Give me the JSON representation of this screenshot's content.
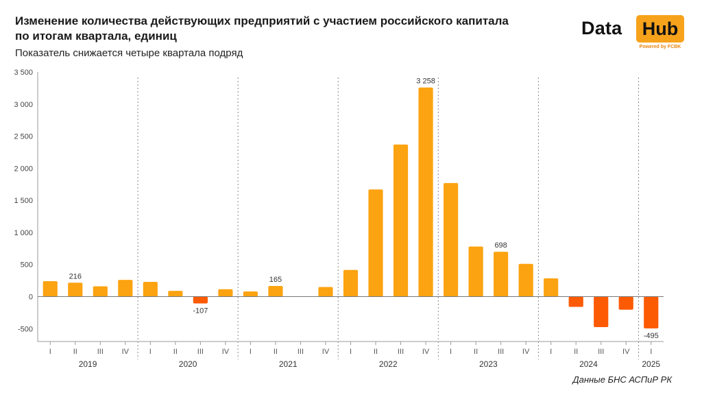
{
  "header": {
    "title": "Изменение количества действующих предприятий с участием российского капитала по итогам квартала, единиц",
    "subtitle": "Показатель снижается четыре квартала подряд"
  },
  "logo": {
    "word1": "Data",
    "word2": "Hub",
    "tagline": "Powered by FCBK"
  },
  "footer": {
    "source": "Данные БНС АСПиР РК"
  },
  "colors": {
    "positive": "#fca311",
    "negative": "#fc5a03",
    "axis": "#999999",
    "separator": "#888888"
  },
  "chart_data": {
    "type": "bar",
    "categories": [
      "I",
      "II",
      "III",
      "IV",
      "I",
      "II",
      "III",
      "IV",
      "I",
      "II",
      "III",
      "IV",
      "I",
      "II",
      "III",
      "IV",
      "I",
      "II",
      "III",
      "IV",
      "I",
      "II",
      "III",
      "IV",
      "I"
    ],
    "years": [
      {
        "label": "2019",
        "start": 0,
        "count": 4
      },
      {
        "label": "2020",
        "start": 4,
        "count": 4
      },
      {
        "label": "2021",
        "start": 8,
        "count": 4
      },
      {
        "label": "2022",
        "start": 12,
        "count": 4
      },
      {
        "label": "2023",
        "start": 16,
        "count": 4
      },
      {
        "label": "2024",
        "start": 20,
        "count": 4
      },
      {
        "label": "2025",
        "start": 24,
        "count": 1
      }
    ],
    "values": [
      240,
      216,
      160,
      260,
      230,
      90,
      -107,
      115,
      80,
      165,
      5,
      150,
      415,
      1670,
      2370,
      3258,
      1770,
      780,
      698,
      510,
      285,
      -160,
      -475,
      -205,
      -495
    ],
    "data_labels": [
      {
        "index": 1,
        "text": "216"
      },
      {
        "index": 6,
        "text": "-107"
      },
      {
        "index": 9,
        "text": "165"
      },
      {
        "index": 15,
        "text": "3 258"
      },
      {
        "index": 18,
        "text": "698"
      },
      {
        "index": 24,
        "text": "-495"
      }
    ],
    "yticks": [
      {
        "value": 3500,
        "label": "3 500"
      },
      {
        "value": 3000,
        "label": "3 000"
      },
      {
        "value": 2500,
        "label": "2 500"
      },
      {
        "value": 2000,
        "label": "2 000"
      },
      {
        "value": 1500,
        "label": "1 500"
      },
      {
        "value": 1000,
        "label": "1 000"
      },
      {
        "value": 500,
        "label": "500"
      },
      {
        "value": 0,
        "label": "0"
      },
      {
        "value": -500,
        "label": "-500"
      }
    ],
    "ylim": [
      -700,
      3500
    ],
    "grid": false,
    "xlabel": "",
    "ylabel": ""
  }
}
